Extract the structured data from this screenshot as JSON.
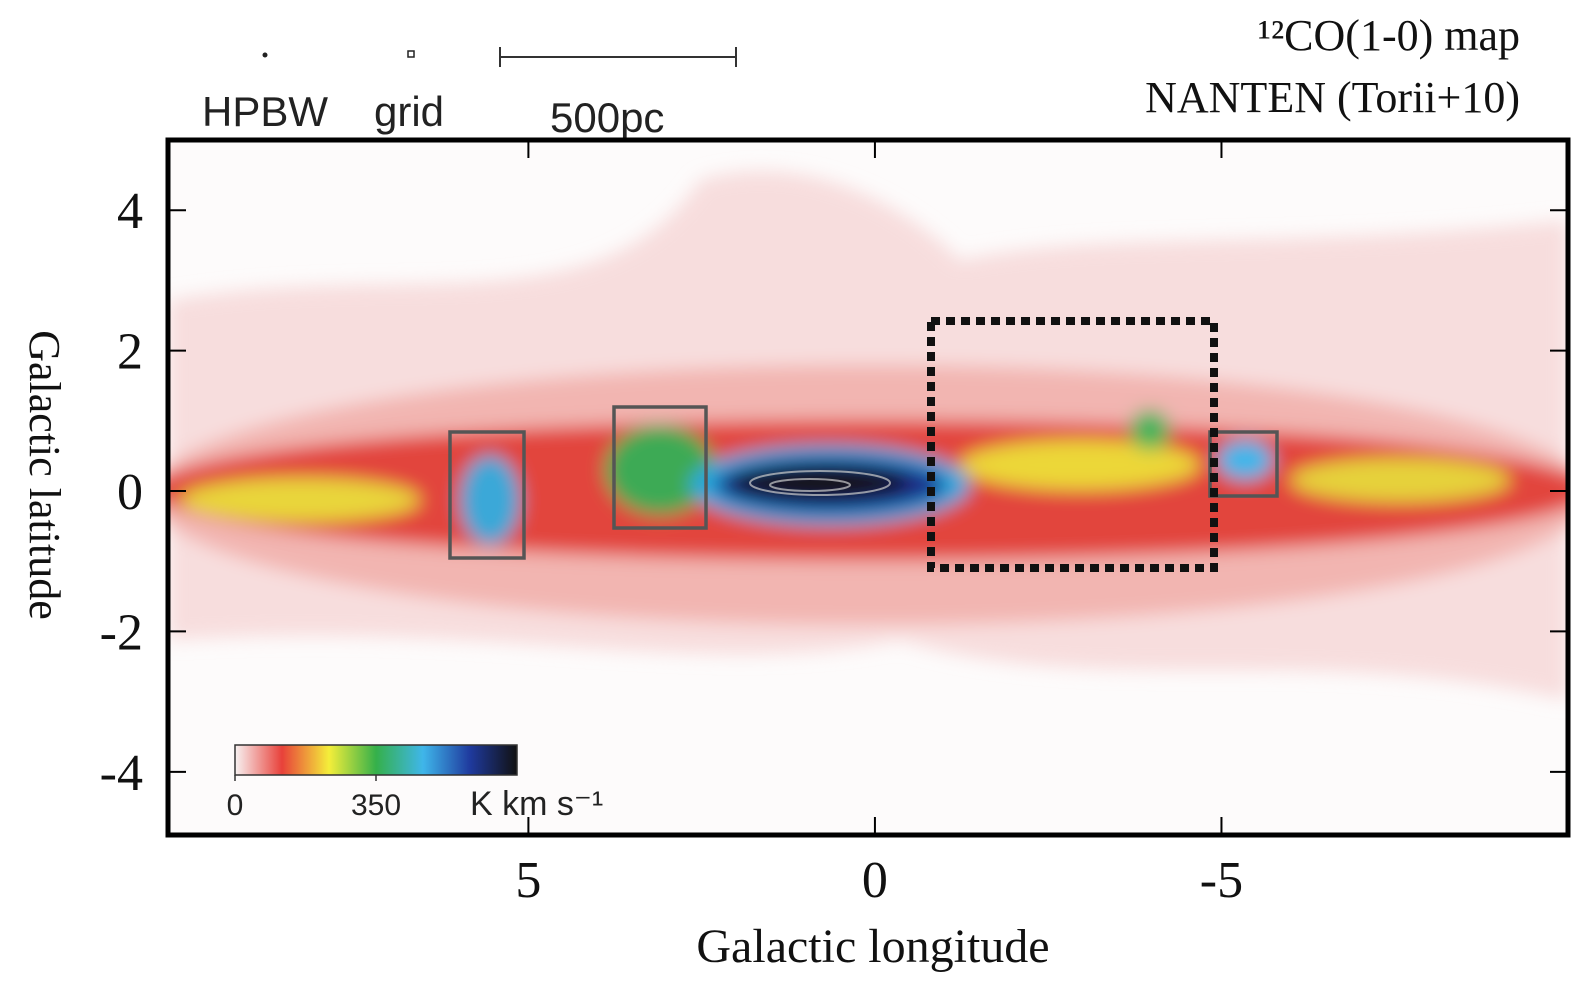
{
  "chart_data": {
    "type": "map",
    "title": "¹²CO(1-0) map",
    "subtitle": "NANTEN (Torii+10)",
    "x_label": "Galactic longitude",
    "y_label": "Galactic latitude",
    "xlim": [
      10.2,
      -10.0
    ],
    "xticks": [
      5,
      0,
      -5
    ],
    "ylim": [
      -4.9,
      5.0
    ],
    "yticks": [
      4,
      2,
      0,
      -2,
      -4
    ],
    "legend_labels": [
      "HPBW",
      "grid",
      "500pc"
    ],
    "colorbar": {
      "lim": [
        0,
        700
      ],
      "ticks": [
        0,
        350
      ],
      "label": "K km s⁻¹",
      "colors": [
        "#f7f2f2",
        "#e8413a",
        "#f4ee3a",
        "#35b04a",
        "#3fb6ea",
        "#1f3a9e",
        "#111111"
      ]
    }
  }
}
